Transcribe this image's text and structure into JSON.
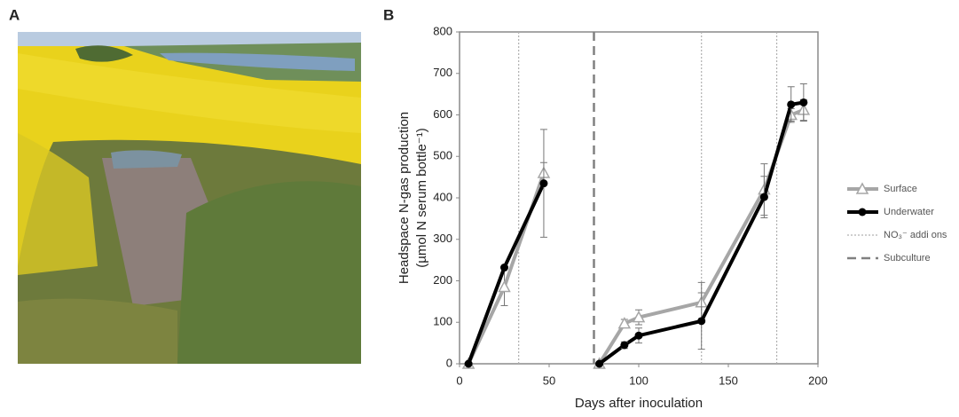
{
  "panels": [
    "A",
    "B"
  ],
  "chart_data": {
    "type": "line",
    "x_label": "Days after inoculation",
    "y_label": [
      "Headspace N-gas production",
      "(µmol N serum bottle⁻¹)"
    ],
    "xlim": [
      0,
      200
    ],
    "xticks": [
      0,
      50,
      100,
      150,
      200
    ],
    "ylim": [
      0,
      800
    ],
    "yticks": [
      0,
      100,
      200,
      300,
      400,
      500,
      600,
      700,
      800
    ],
    "x": [
      5,
      25,
      47,
      null,
      78,
      92,
      100,
      135,
      170,
      185,
      192
    ],
    "series": [
      {
        "name": "Surface",
        "color": "#a6a6a6",
        "marker": "triangle",
        "values": [
          0,
          185,
          460,
          null,
          0,
          97,
          112,
          148,
          420,
          600,
          612
        ],
        "errors": [
          null,
          45,
          25,
          null,
          null,
          10,
          18,
          48,
          62,
          15,
          25
        ]
      },
      {
        "name": "Underwater",
        "color": "#000000",
        "marker": "circle",
        "values": [
          0,
          232,
          435,
          null,
          0,
          45,
          68,
          103,
          402,
          625,
          630
        ],
        "errors": [
          null,
          null,
          130,
          null,
          null,
          8,
          18,
          68,
          50,
          43,
          45
        ]
      }
    ],
    "reference_lines": [
      {
        "name": "NO₃⁻ addi  ons",
        "x": [
          33,
          135,
          177
        ],
        "style": "dotted",
        "color": "#b0b0b0"
      },
      {
        "name": "Subculture",
        "x": [
          75
        ],
        "style": "dashed",
        "color": "#808080"
      }
    ]
  }
}
